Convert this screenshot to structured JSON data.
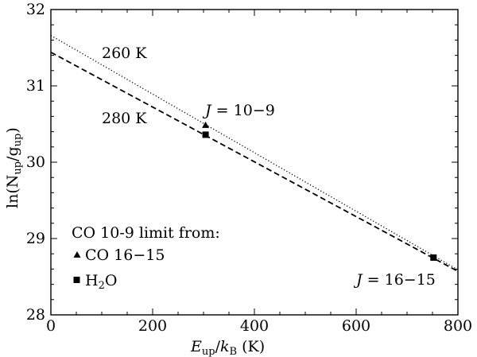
{
  "chart_data": {
    "type": "line",
    "xlabel": {
      "main": "E",
      "sub": "up",
      "slash": "/",
      "k": "k",
      "ksub": "B",
      "unit": " (K)"
    },
    "ylabel": {
      "pre": "ln(N",
      "sub1": "up",
      "mid": "/g",
      "sub2": "up",
      "post": ")"
    },
    "xlim": [
      0,
      800
    ],
    "ylim": [
      28,
      32
    ],
    "x_ticks": [
      "0",
      "200",
      "400",
      "600",
      "800"
    ],
    "y_ticks": [
      "28",
      "29",
      "30",
      "31",
      "32"
    ],
    "grid": false,
    "series": [
      {
        "style": "dotted",
        "x": [
          0,
          800
        ],
        "y": [
          31.66,
          28.59
        ]
      },
      {
        "style": "dashed",
        "x": [
          0,
          800
        ],
        "y": [
          31.44,
          28.57
        ]
      }
    ],
    "points": [
      {
        "marker": "triangle",
        "x": 304,
        "y": 30.48
      },
      {
        "marker": "square",
        "x": 304,
        "y": 30.36
      },
      {
        "marker": "square",
        "x": 752,
        "y": 28.75
      }
    ],
    "annotations": {
      "t260": "260 K",
      "t280": "280 K",
      "j10": {
        "italic": "J",
        "rest": " = 10−9"
      },
      "j16": {
        "italic": "J",
        "rest": " = 16−15"
      }
    },
    "legend": {
      "title": "CO 10-9 limit from:",
      "items": [
        {
          "marker": "triangle",
          "label": "CO 16−15"
        },
        {
          "marker": "square",
          "label_main": "H",
          "label_sub": "2",
          "label_rest": "O"
        }
      ]
    }
  }
}
